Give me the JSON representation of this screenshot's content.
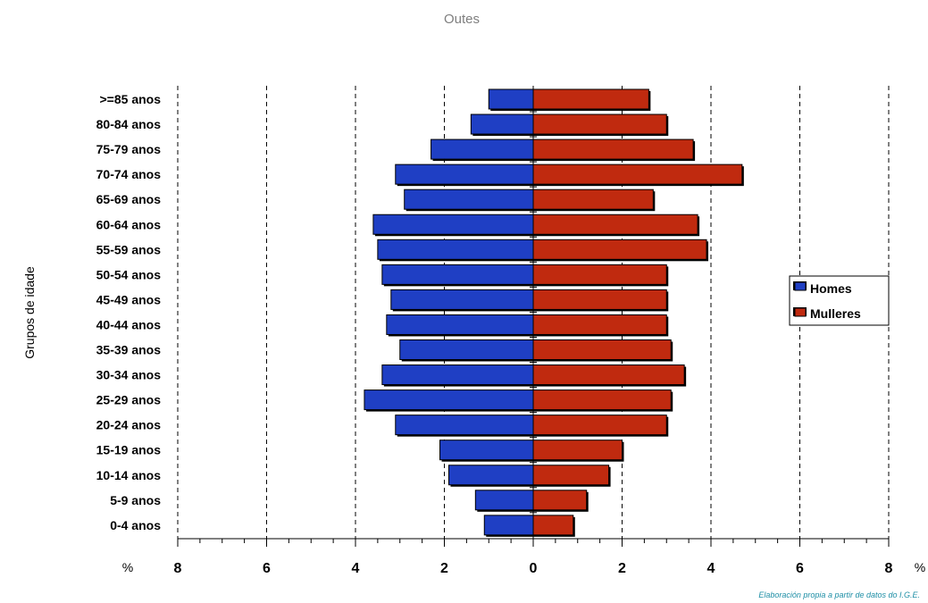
{
  "chart_data": {
    "type": "bar",
    "orientation": "horizontal-pyramid",
    "title": "Outes",
    "ylabel": "Grupos de idade",
    "unit_left": "%",
    "unit_right": "%",
    "source_note": "Elaboración propia a partir de datos do I.G.E.",
    "categories": [
      ">=85 anos",
      "80-84 anos",
      "75-79 anos",
      "70-74 anos",
      "65-69 anos",
      "60-64 anos",
      "55-59 anos",
      "50-54 anos",
      "45-49 anos",
      "40-44 anos",
      "35-39 anos",
      "30-34 anos",
      "25-29 anos",
      "20-24 anos",
      "15-19 anos",
      "10-14 anos",
      "5-9 anos",
      "0-4 anos"
    ],
    "series": [
      {
        "name": "Homes",
        "color": "#1f3fc4",
        "values": [
          1.0,
          1.4,
          2.3,
          3.1,
          2.9,
          3.6,
          3.5,
          3.4,
          3.2,
          3.3,
          3.0,
          3.4,
          3.8,
          3.1,
          2.1,
          1.9,
          1.3,
          1.1
        ]
      },
      {
        "name": "Mulleres",
        "color": "#c02a0f",
        "values": [
          2.6,
          3.0,
          3.6,
          4.7,
          2.7,
          3.7,
          3.9,
          3.0,
          3.0,
          3.0,
          3.1,
          3.4,
          3.1,
          3.0,
          2.0,
          1.7,
          1.2,
          0.9
        ]
      }
    ],
    "xlim": [
      -8,
      8
    ],
    "xticks": [
      -8,
      -6,
      -4,
      -2,
      0,
      2,
      4,
      6,
      8
    ],
    "xtick_labels": [
      "8",
      "6",
      "4",
      "2",
      "0",
      "2",
      "4",
      "6",
      "8"
    ],
    "grid": "vertical dashed",
    "legend_position": "right"
  }
}
